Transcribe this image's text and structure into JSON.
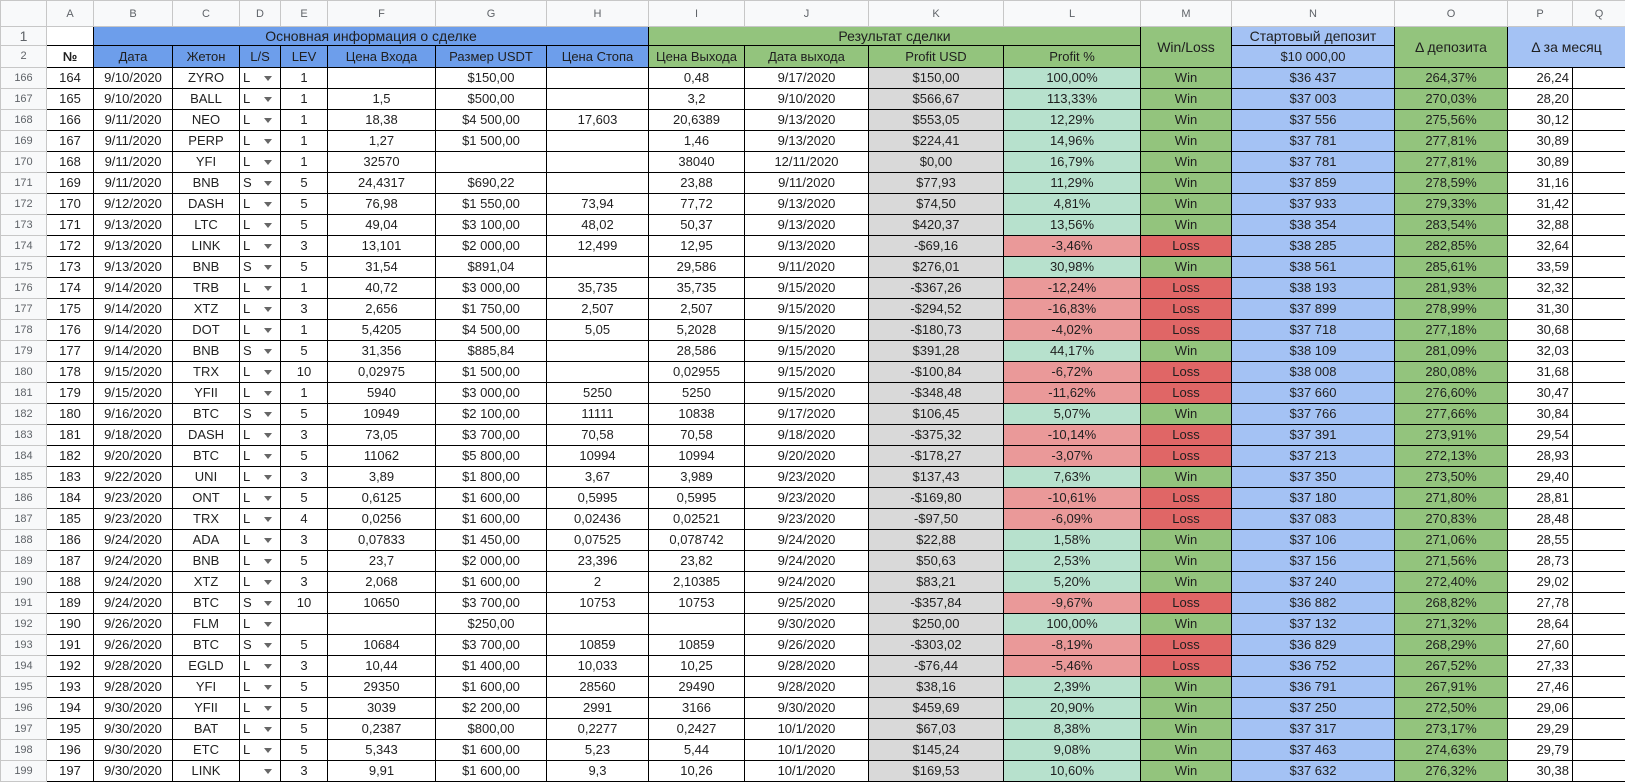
{
  "column_letters": [
    "A",
    "B",
    "C",
    "D",
    "E",
    "F",
    "G",
    "H",
    "I",
    "J",
    "K",
    "L",
    "M",
    "N",
    "O",
    "P",
    "Q"
  ],
  "header": {
    "row_numbers": [
      "1",
      "2"
    ],
    "group_main": "Основная информация о сделке",
    "group_result": "Результат сделки",
    "columns": [
      "№",
      "Дата",
      "Жетон",
      "L/S",
      "LEV",
      "Цена Входа",
      "Размер USDT",
      "Цена Стопа",
      "Цена Выхода",
      "Дата выхода",
      "Profit USD",
      "Profit %"
    ],
    "win_loss": "Win/Loss",
    "deposit_title": "Стартовый депозит",
    "deposit_start": "$10 000,00",
    "delta_deposit": "Δ депозита",
    "delta_month": "Δ за месяц"
  },
  "rows": [
    {
      "row": "166",
      "cells": [
        "164",
        "9/10/2020",
        "ZYRO",
        "L",
        "1",
        null,
        "$150,00",
        null,
        "0,48",
        "9/17/2020",
        "$150,00",
        "100,00%",
        "Win",
        "$36 437",
        "264,37%",
        "26,24"
      ]
    },
    {
      "row": "167",
      "cells": [
        "165",
        "9/10/2020",
        "BALL",
        "L",
        "1",
        "1,5",
        "$500,00",
        null,
        "3,2",
        "9/10/2020",
        "$566,67",
        "113,33%",
        "Win",
        "$37 003",
        "270,03%",
        "28,20"
      ]
    },
    {
      "row": "168",
      "cells": [
        "166",
        "9/11/2020",
        "NEO",
        "L",
        "1",
        "18,38",
        "$4 500,00",
        "17,603",
        "20,6389",
        "9/13/2020",
        "$553,05",
        "12,29%",
        "Win",
        "$37 556",
        "275,56%",
        "30,12"
      ]
    },
    {
      "row": "169",
      "cells": [
        "167",
        "9/11/2020",
        "PERP",
        "L",
        "1",
        "1,27",
        "$1 500,00",
        null,
        "1,46",
        "9/13/2020",
        "$224,41",
        "14,96%",
        "Win",
        "$37 781",
        "277,81%",
        "30,89"
      ]
    },
    {
      "row": "170",
      "cells": [
        "168",
        "9/11/2020",
        "YFI",
        "L",
        "1",
        "32570",
        null,
        null,
        "38040",
        "12/11/2020",
        "$0,00",
        "16,79%",
        "Win",
        "$37 781",
        "277,81%",
        "30,89"
      ]
    },
    {
      "row": "171",
      "cells": [
        "169",
        "9/11/2020",
        "BNB",
        "S",
        "5",
        "24,4317",
        "$690,22",
        null,
        "23,88",
        "9/11/2020",
        "$77,93",
        "11,29%",
        "Win",
        "$37 859",
        "278,59%",
        "31,16"
      ]
    },
    {
      "row": "172",
      "cells": [
        "170",
        "9/12/2020",
        "DASH",
        "L",
        "5",
        "76,98",
        "$1 550,00",
        "73,94",
        "77,72",
        "9/13/2020",
        "$74,50",
        "4,81%",
        "Win",
        "$37 933",
        "279,33%",
        "31,42"
      ]
    },
    {
      "row": "173",
      "cells": [
        "171",
        "9/13/2020",
        "LTC",
        "L",
        "5",
        "49,04",
        "$3 100,00",
        "48,02",
        "50,37",
        "9/13/2020",
        "$420,37",
        "13,56%",
        "Win",
        "$38 354",
        "283,54%",
        "32,88"
      ]
    },
    {
      "row": "174",
      "cells": [
        "172",
        "9/13/2020",
        "LINK",
        "L",
        "3",
        "13,101",
        "$2 000,00",
        "12,499",
        "12,95",
        "9/13/2020",
        "-$69,16",
        "-3,46%",
        "Loss",
        "$38 285",
        "282,85%",
        "32,64"
      ]
    },
    {
      "row": "175",
      "cells": [
        "173",
        "9/13/2020",
        "BNB",
        "S",
        "5",
        "31,54",
        "$891,04",
        null,
        "29,586",
        "9/11/2020",
        "$276,01",
        "30,98%",
        "Win",
        "$38 561",
        "285,61%",
        "33,59"
      ]
    },
    {
      "row": "176",
      "cells": [
        "174",
        "9/14/2020",
        "TRB",
        "L",
        "1",
        "40,72",
        "$3 000,00",
        "35,735",
        "35,735",
        "9/15/2020",
        "-$367,26",
        "-12,24%",
        "Loss",
        "$38 193",
        "281,93%",
        "32,32"
      ]
    },
    {
      "row": "177",
      "cells": [
        "175",
        "9/14/2020",
        "XTZ",
        "L",
        "3",
        "2,656",
        "$1 750,00",
        "2,507",
        "2,507",
        "9/15/2020",
        "-$294,52",
        "-16,83%",
        "Loss",
        "$37 899",
        "278,99%",
        "31,30"
      ]
    },
    {
      "row": "178",
      "cells": [
        "176",
        "9/14/2020",
        "DOT",
        "L",
        "1",
        "5,4205",
        "$4 500,00",
        "5,05",
        "5,2028",
        "9/15/2020",
        "-$180,73",
        "-4,02%",
        "Loss",
        "$37 718",
        "277,18%",
        "30,68"
      ]
    },
    {
      "row": "179",
      "cells": [
        "177",
        "9/14/2020",
        "BNB",
        "S",
        "5",
        "31,356",
        "$885,84",
        null,
        "28,586",
        "9/15/2020",
        "$391,28",
        "44,17%",
        "Win",
        "$38 109",
        "281,09%",
        "32,03"
      ]
    },
    {
      "row": "180",
      "cells": [
        "178",
        "9/15/2020",
        "TRX",
        "L",
        "10",
        "0,02975",
        "$1 500,00",
        null,
        "0,02955",
        "9/15/2020",
        "-$100,84",
        "-6,72%",
        "Loss",
        "$38 008",
        "280,08%",
        "31,68"
      ]
    },
    {
      "row": "181",
      "cells": [
        "179",
        "9/15/2020",
        "YFII",
        "L",
        "1",
        "5940",
        "$3 000,00",
        "5250",
        "5250",
        "9/15/2020",
        "-$348,48",
        "-11,62%",
        "Loss",
        "$37 660",
        "276,60%",
        "30,47"
      ]
    },
    {
      "row": "182",
      "cells": [
        "180",
        "9/16/2020",
        "BTC",
        "S",
        "5",
        "10949",
        "$2 100,00",
        "11111",
        "10838",
        "9/17/2020",
        "$106,45",
        "5,07%",
        "Win",
        "$37 766",
        "277,66%",
        "30,84"
      ]
    },
    {
      "row": "183",
      "cells": [
        "181",
        "9/18/2020",
        "DASH",
        "L",
        "3",
        "73,05",
        "$3 700,00",
        "70,58",
        "70,58",
        "9/18/2020",
        "-$375,32",
        "-10,14%",
        "Loss",
        "$37 391",
        "273,91%",
        "29,54"
      ]
    },
    {
      "row": "184",
      "cells": [
        "182",
        "9/20/2020",
        "BTC",
        "L",
        "5",
        "11062",
        "$5 800,00",
        "10994",
        "10994",
        "9/20/2020",
        "-$178,27",
        "-3,07%",
        "Loss",
        "$37 213",
        "272,13%",
        "28,93"
      ]
    },
    {
      "row": "185",
      "cells": [
        "183",
        "9/22/2020",
        "UNI",
        "L",
        "3",
        "3,89",
        "$1 800,00",
        "3,67",
        "3,989",
        "9/23/2020",
        "$137,43",
        "7,63%",
        "Win",
        "$37 350",
        "273,50%",
        "29,40"
      ]
    },
    {
      "row": "186",
      "cells": [
        "184",
        "9/23/2020",
        "ONT",
        "L",
        "5",
        "0,6125",
        "$1 600,00",
        "0,5995",
        "0,5995",
        "9/23/2020",
        "-$169,80",
        "-10,61%",
        "Loss",
        "$37 180",
        "271,80%",
        "28,81"
      ]
    },
    {
      "row": "187",
      "cells": [
        "185",
        "9/23/2020",
        "TRX",
        "L",
        "4",
        "0,0256",
        "$1 600,00",
        "0,02436",
        "0,02521",
        "9/23/2020",
        "-$97,50",
        "-6,09%",
        "Loss",
        "$37 083",
        "270,83%",
        "28,48"
      ]
    },
    {
      "row": "188",
      "cells": [
        "186",
        "9/24/2020",
        "ADA",
        "L",
        "3",
        "0,07833",
        "$1 450,00",
        "0,07525",
        "0,078742",
        "9/24/2020",
        "$22,88",
        "1,58%",
        "Win",
        "$37 106",
        "271,06%",
        "28,55"
      ]
    },
    {
      "row": "189",
      "cells": [
        "187",
        "9/24/2020",
        "BNB",
        "L",
        "5",
        "23,7",
        "$2 000,00",
        "23,396",
        "23,82",
        "9/24/2020",
        "$50,63",
        "2,53%",
        "Win",
        "$37 156",
        "271,56%",
        "28,73"
      ]
    },
    {
      "row": "190",
      "cells": [
        "188",
        "9/24/2020",
        "XTZ",
        "L",
        "3",
        "2,068",
        "$1 600,00",
        "2",
        "2,10385",
        "9/24/2020",
        "$83,21",
        "5,20%",
        "Win",
        "$37 240",
        "272,40%",
        "29,02"
      ]
    },
    {
      "row": "191",
      "cells": [
        "189",
        "9/24/2020",
        "BTC",
        "S",
        "10",
        "10650",
        "$3 700,00",
        "10753",
        "10753",
        "9/25/2020",
        "-$357,84",
        "-9,67%",
        "Loss",
        "$36 882",
        "268,82%",
        "27,78"
      ]
    },
    {
      "row": "192",
      "cells": [
        "190",
        "9/26/2020",
        "FLM",
        "L",
        null,
        null,
        "$250,00",
        null,
        null,
        "9/30/2020",
        "$250,00",
        "100,00%",
        "Win",
        "$37 132",
        "271,32%",
        "28,64"
      ]
    },
    {
      "row": "193",
      "cells": [
        "191",
        "9/26/2020",
        "BTC",
        "S",
        "5",
        "10684",
        "$3 700,00",
        "10859",
        "10859",
        "9/26/2020",
        "-$303,02",
        "-8,19%",
        "Loss",
        "$36 829",
        "268,29%",
        "27,60"
      ]
    },
    {
      "row": "194",
      "cells": [
        "192",
        "9/28/2020",
        "EGLD",
        "L",
        "3",
        "10,44",
        "$1 400,00",
        "10,033",
        "10,25",
        "9/28/2020",
        "-$76,44",
        "-5,46%",
        "Loss",
        "$36 752",
        "267,52%",
        "27,33"
      ]
    },
    {
      "row": "195",
      "cells": [
        "193",
        "9/28/2020",
        "YFI",
        "L",
        "5",
        "29350",
        "$1 600,00",
        "28560",
        "29490",
        "9/28/2020",
        "$38,16",
        "2,39%",
        "Win",
        "$36 791",
        "267,91%",
        "27,46"
      ]
    },
    {
      "row": "196",
      "cells": [
        "194",
        "9/30/2020",
        "YFII",
        "L",
        "5",
        "3039",
        "$2 200,00",
        "2991",
        "3166",
        "9/30/2020",
        "$459,69",
        "20,90%",
        "Win",
        "$37 250",
        "272,50%",
        "29,06"
      ]
    },
    {
      "row": "197",
      "cells": [
        "195",
        "9/30/2020",
        "BAT",
        "L",
        "5",
        "0,2387",
        "$800,00",
        "0,2277",
        "0,2427",
        "10/1/2020",
        "$67,03",
        "8,38%",
        "Win",
        "$37 317",
        "273,17%",
        "29,29"
      ]
    },
    {
      "row": "198",
      "cells": [
        "196",
        "9/30/2020",
        "ETC",
        "L",
        "5",
        "5,343",
        "$1 600,00",
        "5,23",
        "5,44",
        "10/1/2020",
        "$145,24",
        "9,08%",
        "Win",
        "$37 463",
        "274,63%",
        "29,79"
      ]
    },
    {
      "row": "199",
      "cells": [
        "197",
        "9/30/2020",
        "LINK",
        null,
        "3",
        "9,91",
        "$1 600,00",
        "9,3",
        "10,26",
        "10/1/2020",
        "$169,53",
        "10,60%",
        "Win",
        "$37 632",
        "276,32%",
        "30,38"
      ]
    }
  ]
}
